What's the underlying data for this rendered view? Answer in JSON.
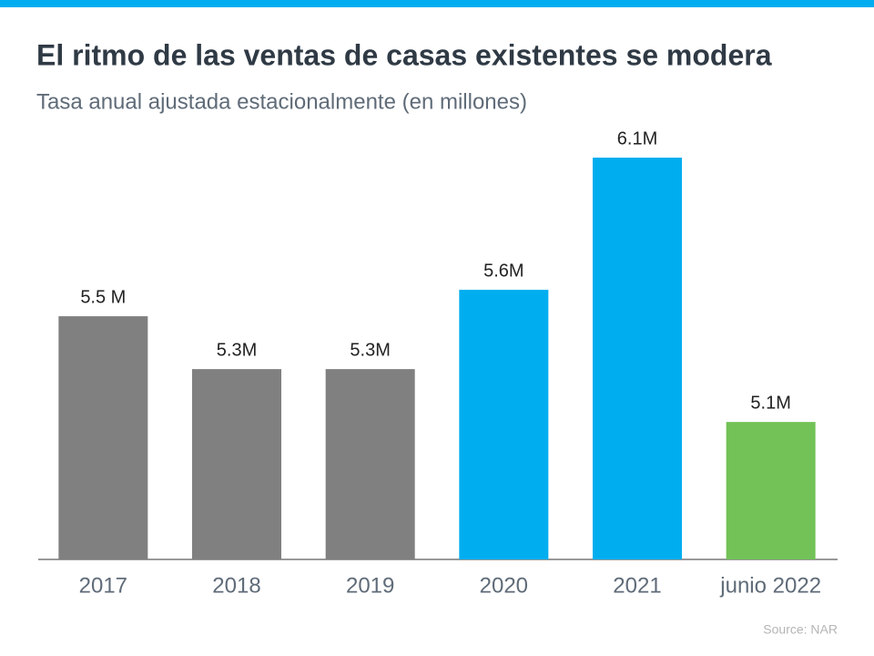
{
  "chart_data": {
    "type": "bar",
    "title": "El ritmo de las ventas de casas existentes se modera",
    "subtitle": "Tasa anual ajustada estacionalmente (en millones)",
    "categories": [
      "2017",
      "2018",
      "2019",
      "2020",
      "2021",
      "junio 2022"
    ],
    "values": [
      5.5,
      5.3,
      5.3,
      5.6,
      6.1,
      5.1
    ],
    "value_labels": [
      "5.5 M",
      "5.3M",
      "5.3M",
      "5.6M",
      "6.1M",
      "5.1M"
    ],
    "colors": [
      "#808080",
      "#808080",
      "#808080",
      "#00aeef",
      "#00aeef",
      "#72c257"
    ],
    "ylim": [
      4.58,
      6.2
    ],
    "source": "Source: NAR"
  }
}
